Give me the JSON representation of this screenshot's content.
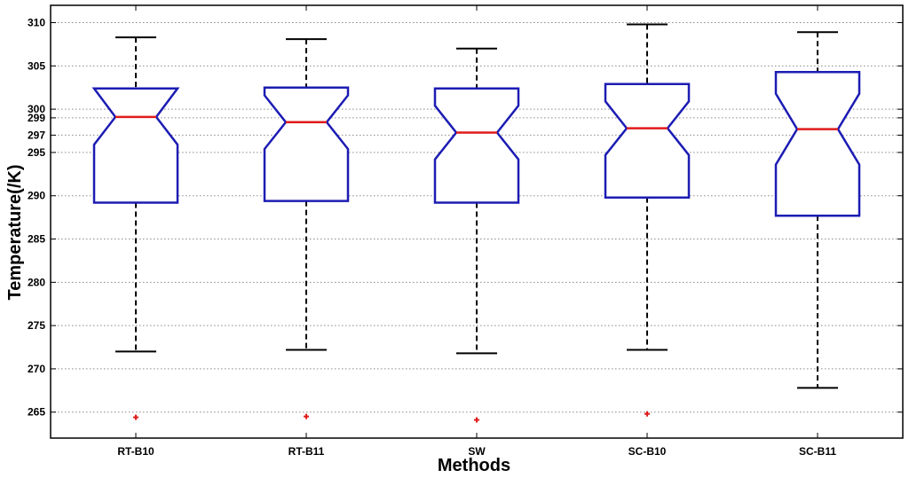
{
  "chart_data": {
    "type": "boxplot",
    "notched": true,
    "xlabel": "Methods",
    "ylabel": "Temperature(/K)",
    "ylim": [
      262,
      312
    ],
    "yticks": [
      265,
      270,
      275,
      280,
      285,
      290,
      295,
      297,
      299,
      300,
      305,
      310
    ],
    "grid": "horizontal-dotted",
    "categories": [
      "RT-B10",
      "RT-B11",
      "SW",
      "SC-B10",
      "SC-B11"
    ],
    "boxes": [
      {
        "label": "RT-B10",
        "whisker_low": 272.0,
        "q1": 289.2,
        "median": 299.1,
        "q3": 302.4,
        "whisker_high": 308.3,
        "notch_low": 295.9,
        "notch_high": 302.4,
        "outliers": [
          264.4
        ]
      },
      {
        "label": "RT-B11",
        "whisker_low": 272.2,
        "q1": 289.4,
        "median": 298.5,
        "q3": 302.5,
        "whisker_high": 308.1,
        "notch_low": 295.4,
        "notch_high": 301.6,
        "outliers": [
          264.5
        ]
      },
      {
        "label": "SW",
        "whisker_low": 271.8,
        "q1": 289.2,
        "median": 297.3,
        "q3": 302.4,
        "whisker_high": 307.0,
        "notch_low": 294.2,
        "notch_high": 300.4,
        "outliers": [
          264.1
        ]
      },
      {
        "label": "SC-B10",
        "whisker_low": 272.2,
        "q1": 289.8,
        "median": 297.8,
        "q3": 302.9,
        "whisker_high": 309.8,
        "notch_low": 294.7,
        "notch_high": 300.9,
        "outliers": [
          264.8
        ]
      },
      {
        "label": "SC-B11",
        "whisker_low": 267.8,
        "q1": 287.7,
        "median": 297.7,
        "q3": 304.3,
        "whisker_high": 308.9,
        "notch_low": 293.6,
        "notch_high": 301.8,
        "outliers": []
      }
    ],
    "colors": {
      "box": "#1c1cb4",
      "median": "#e01a1a",
      "whisker": "#000000",
      "outlier": "#e01a1a",
      "grid": "#8a8a8a"
    }
  }
}
